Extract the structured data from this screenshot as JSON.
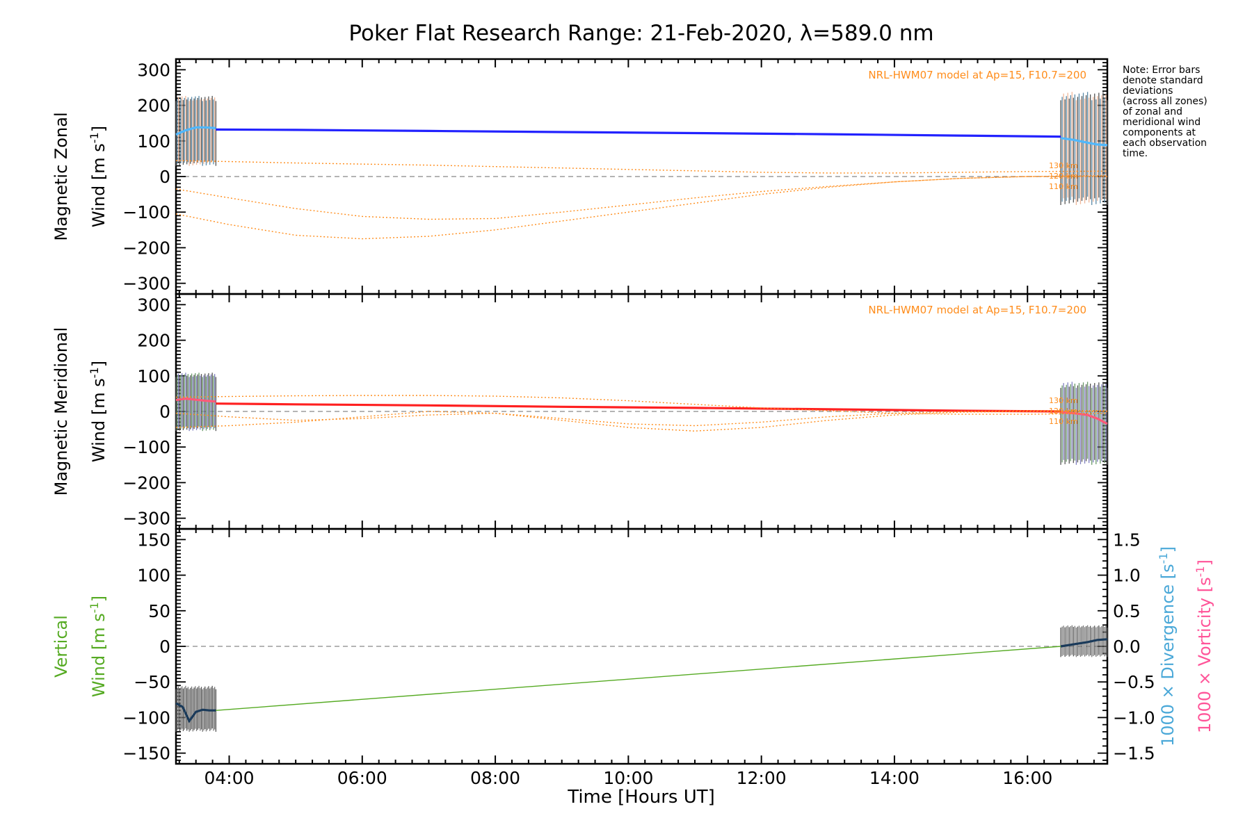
{
  "figure": {
    "title": "Poker Flat Research Range: 21-Feb-2020, λ=589.0 nm",
    "note": [
      "Note: Error bars",
      "denote standard",
      "deviations",
      "(across all zones)",
      "of zonal and",
      "meridional wind",
      "components at",
      "each observation",
      "time."
    ],
    "x_axis_label": "Time [Hours UT]",
    "x_ticks": [
      "04:00",
      "06:00",
      "08:00",
      "10:00",
      "12:00",
      "14:00",
      "16:00"
    ]
  },
  "colors": {
    "zonal": "#2222ff",
    "zonal_light": "#4fb8ff",
    "meridional": "#ff2020",
    "meridional_light": "#b0a8e0",
    "model": "#ff8c1a",
    "vertical": "#55aa22",
    "divergence_label": "#4aa8d8",
    "vorticity_label": "#ff5599",
    "errorbar": "#555555",
    "zero_line": "#888888"
  },
  "chart_data": [
    {
      "type": "line",
      "panel": "zonal",
      "ylabel_line1": "Magnetic Zonal",
      "ylabel_line2": "Wind [m s",
      "ylabel_sup": "-1",
      "ylabel_close": "]",
      "model_label": "NRL-HWM07 model at Ap=15, F10.7=200",
      "alt_labels": [
        "130 km",
        "120 km",
        "110 km"
      ],
      "xlim": [
        3.2,
        17.2
      ],
      "ylim": [
        -330,
        330
      ],
      "yticks": [
        "300",
        "200",
        "100",
        "0",
        "−100",
        "−200",
        "−300"
      ],
      "series": [
        {
          "role": "measured",
          "x": [
            3.2,
            3.35,
            3.5,
            3.65,
            3.8
          ],
          "y": [
            118,
            130,
            138,
            138,
            136
          ]
        },
        {
          "role": "measured",
          "x": [
            16.5,
            16.7,
            16.9,
            17.05,
            17.2
          ],
          "y": [
            108,
            103,
            95,
            90,
            88
          ]
        },
        {
          "role": "fit",
          "x": [
            3.8,
            5,
            7,
            9,
            11,
            13,
            15,
            16.5
          ],
          "y": [
            132,
            131,
            128,
            125,
            122,
            119,
            115,
            112
          ]
        },
        {
          "role": "model",
          "x": [
            3.2,
            4,
            5,
            6,
            7,
            8,
            9,
            10,
            11,
            12,
            13,
            14,
            15,
            16,
            17.2
          ],
          "y": [
            45,
            42,
            38,
            35,
            32,
            28,
            24,
            20,
            16,
            12,
            10,
            10,
            12,
            14,
            15
          ]
        },
        {
          "role": "model",
          "x": [
            3.2,
            4,
            5,
            6,
            7,
            8,
            9,
            10,
            11,
            12,
            13,
            14,
            15,
            16,
            17.2
          ],
          "y": [
            -35,
            -60,
            -90,
            -112,
            -120,
            -118,
            -100,
            -80,
            -60,
            -42,
            -28,
            -15,
            -5,
            0,
            3
          ]
        },
        {
          "role": "model",
          "x": [
            3.2,
            4,
            5,
            6,
            7,
            8,
            9,
            10,
            11,
            12,
            13,
            14,
            15,
            16,
            17.2
          ],
          "y": [
            -105,
            -135,
            -165,
            -175,
            -168,
            -150,
            -125,
            -100,
            -75,
            -50,
            -30,
            -15,
            -5,
            0,
            0
          ]
        }
      ],
      "error_bars": [
        {
          "x_range": [
            3.2,
            3.8
          ],
          "y_range": [
            30,
            228
          ]
        },
        {
          "x_range": [
            16.5,
            17.2
          ],
          "y_range": [
            -80,
            240
          ]
        }
      ]
    },
    {
      "type": "line",
      "panel": "meridional",
      "ylabel_line1": "Magnetic Meridional",
      "ylabel_line2": "Wind [m s",
      "ylabel_sup": "-1",
      "ylabel_close": "]",
      "model_label": "NRL-HWM07 model at Ap=15, F10.7=200",
      "alt_labels": [
        "130 km",
        "120 km",
        "110 km"
      ],
      "xlim": [
        3.2,
        17.2
      ],
      "ylim": [
        -330,
        330
      ],
      "yticks": [
        "300",
        "200",
        "100",
        "0",
        "−100",
        "−200",
        "−300"
      ],
      "series": [
        {
          "role": "measured",
          "x": [
            3.2,
            3.35,
            3.5,
            3.65,
            3.8
          ],
          "y": [
            32,
            36,
            33,
            30,
            28
          ]
        },
        {
          "role": "measured",
          "x": [
            16.5,
            16.7,
            16.9,
            17.05,
            17.2
          ],
          "y": [
            -2,
            -5,
            -10,
            -20,
            -35
          ]
        },
        {
          "role": "fit",
          "x": [
            3.8,
            5,
            7,
            9,
            11,
            13,
            15,
            16.5
          ],
          "y": [
            22,
            20,
            17,
            13,
            10,
            6,
            2,
            0
          ]
        },
        {
          "role": "model",
          "x": [
            3.2,
            4,
            5,
            6,
            7,
            8,
            9,
            10,
            11,
            12,
            13,
            14,
            15,
            16,
            17.2
          ],
          "y": [
            40,
            42,
            44,
            45,
            45,
            43,
            38,
            30,
            20,
            10,
            2,
            -5,
            -8,
            -8,
            -5
          ]
        },
        {
          "role": "model",
          "x": [
            3.2,
            4,
            5,
            6,
            7,
            8,
            9,
            10,
            11,
            12,
            13,
            14,
            15,
            16,
            17.2
          ],
          "y": [
            -5,
            -15,
            -25,
            -20,
            -10,
            -5,
            -20,
            -35,
            -40,
            -30,
            -15,
            -5,
            0,
            2,
            2
          ]
        },
        {
          "role": "model",
          "x": [
            3.2,
            4,
            5,
            6,
            7,
            8,
            9,
            10,
            11,
            12,
            13,
            14,
            15,
            16,
            17.2
          ],
          "y": [
            -45,
            -40,
            -30,
            -15,
            0,
            -5,
            -25,
            -45,
            -55,
            -45,
            -25,
            -10,
            -2,
            0,
            0
          ]
        }
      ],
      "error_bars": [
        {
          "x_range": [
            3.2,
            3.8
          ],
          "y_range": [
            -55,
            110
          ]
        },
        {
          "x_range": [
            16.5,
            17.2
          ],
          "y_range": [
            -150,
            85
          ]
        }
      ]
    },
    {
      "type": "line",
      "panel": "vertical",
      "ylabel_line1": "Vertical",
      "ylabel_line2": "Wind [m s",
      "ylabel_sup": "-1",
      "ylabel_close": "]",
      "right_label_div": "1000 × Divergence [s",
      "right_label_vort": "1000 × Vorticity [s",
      "right_label_sup": "-1",
      "right_label_close": "]",
      "xlim": [
        3.2,
        17.2
      ],
      "ylim": [
        -165,
        165
      ],
      "yticks": [
        "150",
        "100",
        "50",
        "0",
        "−50",
        "−100",
        "−150"
      ],
      "y2lim": [
        -1.65,
        1.65
      ],
      "y2ticks": [
        "1.5",
        "1.0",
        "0.5",
        "0.0",
        "−0.5",
        "−1.0",
        "−1.5"
      ],
      "series": [
        {
          "role": "measured",
          "x": [
            3.2,
            3.3,
            3.4,
            3.5,
            3.6,
            3.7,
            3.8
          ],
          "y": [
            -80,
            -85,
            -105,
            -92,
            -89,
            -90,
            -90
          ]
        },
        {
          "role": "fit",
          "x": [
            3.8,
            16.5
          ],
          "y": [
            -90,
            0
          ]
        },
        {
          "role": "measured",
          "x": [
            16.5,
            16.7,
            16.9,
            17.05,
            17.2
          ],
          "y": [
            0,
            3,
            6,
            9,
            10
          ]
        }
      ],
      "error_bars": [
        {
          "x_range": [
            3.2,
            3.8
          ],
          "y_range": [
            -120,
            -55
          ]
        },
        {
          "x_range": [
            16.5,
            17.2
          ],
          "y_range": [
            -15,
            30
          ]
        }
      ]
    }
  ]
}
